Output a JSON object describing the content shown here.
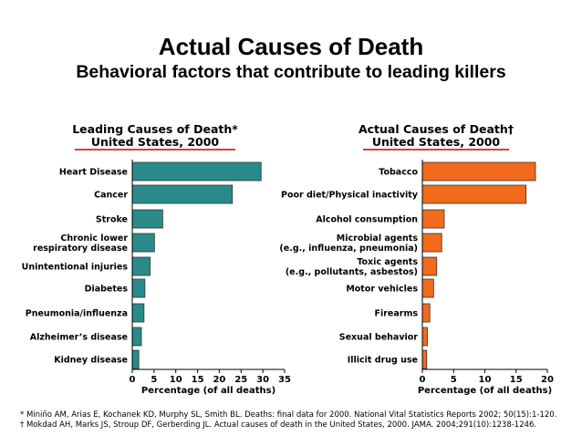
{
  "header": {
    "title": "Actual Causes of Death",
    "subtitle": "Behavioral factors that contribute to leading killers"
  },
  "chart_data": [
    {
      "type": "bar",
      "orientation": "horizontal",
      "title": "Leading Causes of Death*",
      "subtitle": "United States, 2000",
      "categories": [
        [
          "Heart Disease"
        ],
        [
          "Cancer"
        ],
        [
          "Stroke"
        ],
        [
          "Chronic lower",
          "respiratory disease"
        ],
        [
          "Unintentional injuries"
        ],
        [
          "Diabetes"
        ],
        [
          "Pneumonia/influenza"
        ],
        [
          "Alzheimer’s disease"
        ],
        [
          "Kidney disease"
        ]
      ],
      "values": [
        29.6,
        23.0,
        7.0,
        5.1,
        4.1,
        2.9,
        2.7,
        2.1,
        1.5
      ],
      "xlabel": "Percentage (of all deaths)",
      "xlim": [
        0,
        35
      ],
      "xticks": [
        0,
        5,
        10,
        15,
        20,
        25,
        30,
        35
      ],
      "color": "#2a8a8a"
    },
    {
      "type": "bar",
      "orientation": "horizontal",
      "title": "Actual Causes of Death†",
      "subtitle": "United States, 2000",
      "categories": [
        [
          "Tobacco"
        ],
        [
          "Poor diet/Physical inactivity"
        ],
        [
          "Alcohol consumption"
        ],
        [
          "Microbial agents",
          "(e.g., influenza, pneumonia)"
        ],
        [
          "Toxic agents",
          "(e.g., pollutants, asbestos)"
        ],
        [
          "Motor vehicles"
        ],
        [
          "Firearms"
        ],
        [
          "Sexual behavior"
        ],
        [
          "Illicit drug use"
        ]
      ],
      "values": [
        18.1,
        16.6,
        3.5,
        3.1,
        2.3,
        1.8,
        1.2,
        0.8,
        0.7
      ],
      "xlabel": "Percentage (of all deaths)",
      "xlim": [
        0,
        20
      ],
      "xticks": [
        0,
        5,
        10,
        15,
        20
      ],
      "color": "#f26a1b"
    }
  ],
  "footnotes": [
    "* Miniño AM, Arias E, Kochanek KD, Murphy SL, Smith BL. Deaths: final data for 2000. National Vital Statistics Reports 2002; 50(15):1-120.",
    "† Mokdad AH, Marks JS, Stroup DF, Gerberding JL.  Actual causes of death in the United States, 2000.  JAMA. 2004;291(10):1238-1246."
  ],
  "colors": {
    "underline": "#cc0000",
    "left_bar": "#2a8a8a",
    "right_bar": "#f26a1b"
  }
}
